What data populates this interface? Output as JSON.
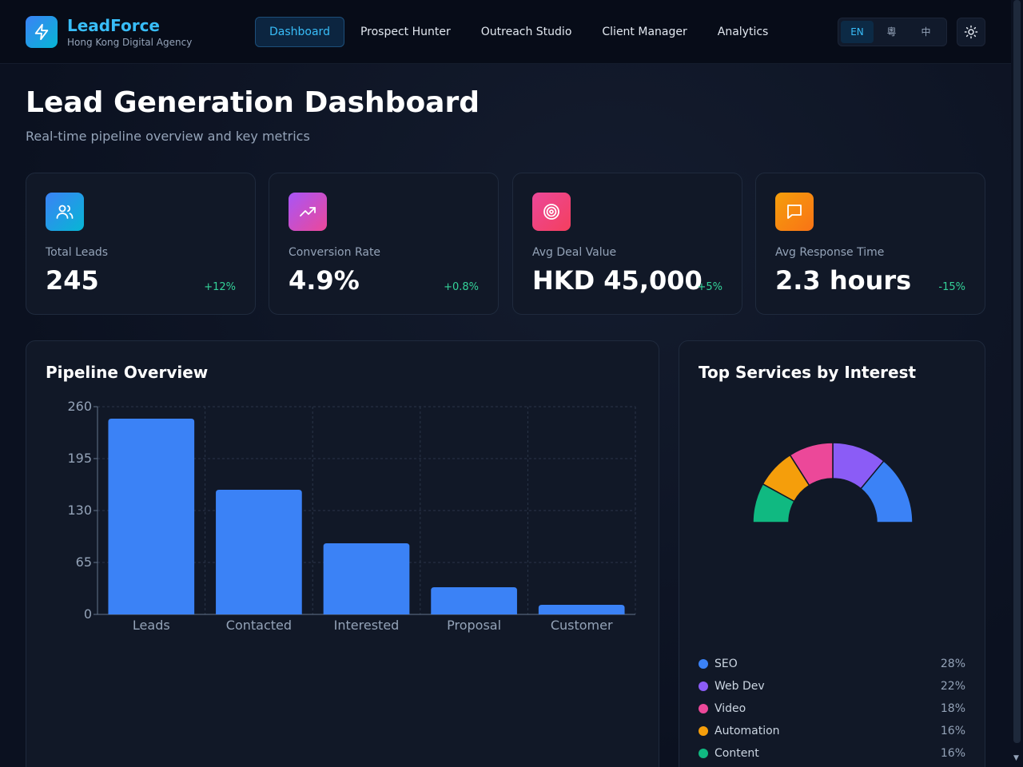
{
  "brand": {
    "name": "LeadForce",
    "subtitle": "Hong Kong Digital Agency",
    "icon": "lightning-icon"
  },
  "nav": {
    "items": [
      "Dashboard",
      "Prospect Hunter",
      "Outreach Studio",
      "Client Manager",
      "Analytics"
    ],
    "active": "Dashboard"
  },
  "lang": {
    "options": [
      "EN",
      "粵",
      "中"
    ],
    "active": "EN"
  },
  "theme": {
    "icon": "sun-icon"
  },
  "page": {
    "title": "Lead Generation Dashboard",
    "subtitle": "Real-time pipeline overview and key metrics"
  },
  "metrics": [
    {
      "label": "Total Leads",
      "value": "245",
      "change": "+12%",
      "icon": "users-icon",
      "gradient": [
        "#3b82f6",
        "#06b6d4"
      ]
    },
    {
      "label": "Conversion Rate",
      "value": "4.9%",
      "change": "+0.8%",
      "icon": "trending-up-icon",
      "gradient": [
        "#a855f7",
        "#ec4899"
      ]
    },
    {
      "label": "Avg Deal Value",
      "value": "HKD 45,000",
      "change": "+5%",
      "icon": "target-icon",
      "gradient": [
        "#ec4899",
        "#f43f5e"
      ]
    },
    {
      "label": "Avg Response Time",
      "value": "2.3 hours",
      "change": "-15%",
      "icon": "message-icon",
      "gradient": [
        "#f59e0b",
        "#f97316"
      ]
    }
  ],
  "pipeline": {
    "title": "Pipeline Overview",
    "chart_data": {
      "type": "bar",
      "categories": [
        "Leads",
        "Contacted",
        "Interested",
        "Proposal",
        "Customer"
      ],
      "values": [
        245,
        156,
        89,
        34,
        12
      ],
      "ylim": [
        0,
        260
      ],
      "yticks": [
        0,
        65,
        130,
        195,
        260
      ],
      "grid": true,
      "color": "#3b82f6"
    }
  },
  "services": {
    "title": "Top Services by Interest",
    "chart_data": {
      "type": "pie",
      "variant": "half-donut",
      "categories": [
        "SEO",
        "Web Dev",
        "Video",
        "Automation",
        "Content"
      ],
      "values": [
        28,
        22,
        18,
        16,
        16
      ],
      "labels": [
        "28%",
        "22%",
        "18%",
        "16%",
        "16%"
      ],
      "colors": [
        "#3b82f6",
        "#8b5cf6",
        "#ec4899",
        "#f59e0b",
        "#10b981"
      ]
    }
  }
}
